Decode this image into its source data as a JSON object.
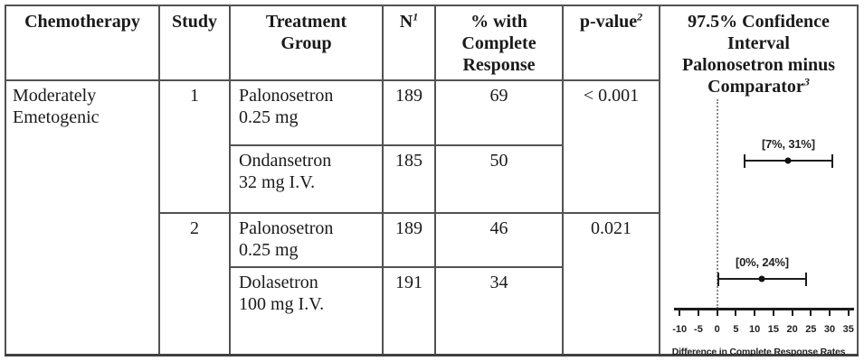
{
  "table": {
    "headers": [
      {
        "lines": [
          "Chemotherapy"
        ]
      },
      {
        "lines": [
          "Study"
        ]
      },
      {
        "lines": [
          "Treatment",
          "Group"
        ]
      },
      {
        "lines": [
          "N"
        ],
        "sup": "1"
      },
      {
        "lines": [
          "% with",
          "Complete",
          "Response"
        ]
      },
      {
        "lines": [
          "p-value"
        ],
        "sup": "2"
      },
      {
        "lines": [
          "97.5% Confidence",
          "Interval",
          "Palonosetron minus",
          "Comparator"
        ],
        "sup": "3"
      }
    ],
    "chemotherapy_lines": [
      "Moderately",
      "Emetogenic"
    ],
    "rows": [
      {
        "study": "1",
        "treatment_lines": [
          "Palonosetron",
          "0.25 mg"
        ],
        "n": "189",
        "pct_complete_response": "69",
        "p_value": "< 0.001"
      },
      {
        "treatment_lines": [
          "Ondansetron",
          "32 mg I.V."
        ],
        "n": "185",
        "pct_complete_response": "50"
      },
      {
        "study": "2",
        "treatment_lines": [
          "Palonosetron",
          "0.25 mg"
        ],
        "n": "189",
        "pct_complete_response": "46",
        "p_value": "0.021"
      },
      {
        "treatment_lines": [
          "Dolasetron",
          "100 mg I.V."
        ],
        "n": "191",
        "pct_complete_response": "34"
      }
    ]
  },
  "chart_data": {
    "type": "forest",
    "x_range": [
      -11.5,
      36.5
    ],
    "x_ticks": [
      -10,
      -5,
      0,
      5,
      10,
      15,
      20,
      25,
      30,
      35
    ],
    "reference_x": 0,
    "xlabel": "Difference in Complete Response Rates",
    "series": [
      {
        "ci_label": "[7%, 31%]",
        "ci_low": 7,
        "ci_high": 31,
        "point": 19
      },
      {
        "ci_label": "[0%, 24%]",
        "ci_low": 0,
        "ci_high": 24,
        "point": 12
      }
    ]
  }
}
